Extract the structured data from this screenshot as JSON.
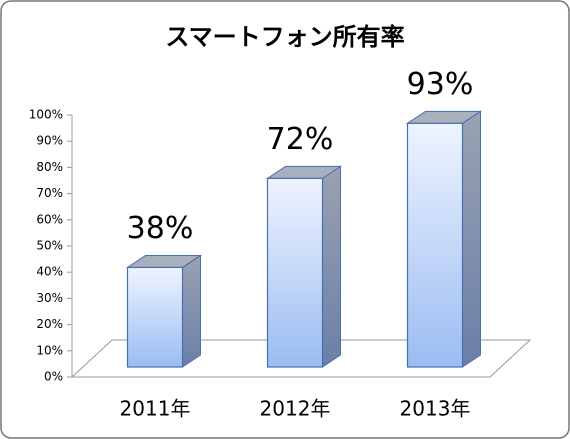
{
  "chart_data": {
    "type": "bar3d",
    "title": "スマートフォン所有率",
    "categories": [
      "2011年",
      "2012年",
      "2013年"
    ],
    "values": [
      38,
      72,
      93
    ],
    "value_labels": [
      "38%",
      "72%",
      "93%"
    ],
    "ylim": [
      0,
      100
    ],
    "yticks": [
      {
        "value": 0,
        "label": "0%"
      },
      {
        "value": 10,
        "label": "10%"
      },
      {
        "value": 20,
        "label": "20%"
      },
      {
        "value": 30,
        "label": "30%"
      },
      {
        "value": 40,
        "label": "40%"
      },
      {
        "value": 50,
        "label": "50%"
      },
      {
        "value": 60,
        "label": "60%"
      },
      {
        "value": 70,
        "label": "70%"
      },
      {
        "value": 80,
        "label": "80%"
      },
      {
        "value": 90,
        "label": "90%"
      },
      {
        "value": 100,
        "label": "100%"
      }
    ],
    "color": "#9bbcf2"
  }
}
